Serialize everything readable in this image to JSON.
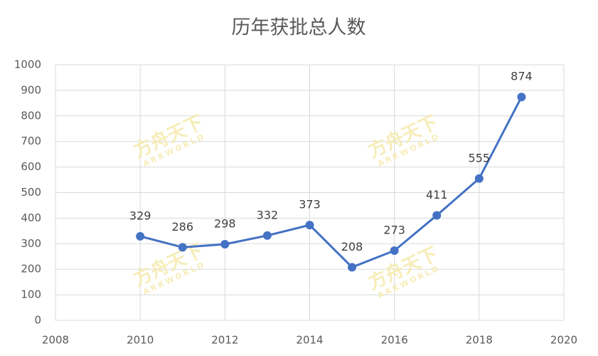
{
  "chart_data": {
    "type": "line",
    "title": "历年获批总人数",
    "x": [
      2010,
      2011,
      2012,
      2013,
      2014,
      2015,
      2016,
      2017,
      2018,
      2019
    ],
    "series": [
      {
        "name": "获批总人数",
        "color": "#4472c4",
        "values": [
          329,
          286,
          298,
          332,
          373,
          208,
          273,
          411,
          555,
          874
        ]
      }
    ],
    "xlim": [
      2008,
      2020
    ],
    "xticks": [
      2008,
      2010,
      2012,
      2014,
      2016,
      2018,
      2020
    ],
    "ylim": [
      0,
      1000
    ],
    "yticks": [
      0,
      100,
      200,
      300,
      400,
      500,
      600,
      700,
      800,
      900,
      1000
    ],
    "grid": true,
    "data_labels": true,
    "watermark": {
      "text": "方舟天下",
      "subtext": "ARKWORLD"
    }
  }
}
